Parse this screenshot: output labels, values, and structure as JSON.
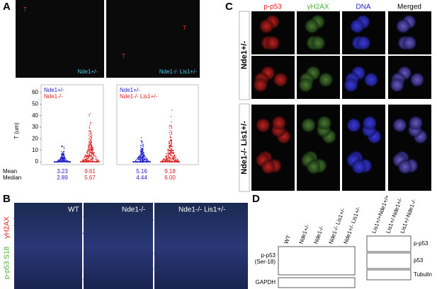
{
  "panel_a": {
    "letter": "A",
    "image_labels": [
      "Nde1+/-",
      "Nde1-/- Lis1+/-"
    ],
    "marker": "T",
    "y_label": "T (um)",
    "yticks": [
      "0",
      "10",
      "20",
      "30",
      "40",
      "50",
      "60"
    ],
    "row_labels": [
      "Mean",
      "Median"
    ],
    "plots": [
      {
        "legend": [
          "Nde1+/-",
          "Nde1-/-"
        ],
        "mean": [
          "3.23",
          "9.61"
        ],
        "median": [
          "2.89",
          "5.67"
        ]
      },
      {
        "legend": [
          "Nde1+/-",
          "Nde1-/- Lis1+/-"
        ],
        "mean": [
          "5.16",
          "9.18"
        ],
        "median": [
          "4.44",
          "6.00"
        ]
      }
    ]
  },
  "panel_b": {
    "letter": "B",
    "image_labels": [
      "WT",
      "Nde1-/-",
      "Nde1-/- Lis1+/-"
    ],
    "stain_labels": [
      "γH2AX",
      "p-p53 S18"
    ]
  },
  "panel_c": {
    "letter": "C",
    "columns": [
      "p-p53",
      "γH2AX",
      "DNA",
      "Merged"
    ],
    "groups": [
      "Nde1+/-",
      "Nde1-/-  Lis1+/-"
    ]
  },
  "panel_d": {
    "letter": "D",
    "left_lanes": [
      "WT",
      "Nde1+/-",
      "Nde1-/-",
      "Nde1-/- Lis1+/-",
      "Nde1+/- Lis1+/-"
    ],
    "left_bands": [
      [
        "p-p53",
        "(Ser-18)"
      ],
      [
        "GAPDH"
      ]
    ],
    "right_lanes": [
      "Lis1+/+Nde1+/+",
      "Lis1+/-Nde1+/-",
      "Lis1+/-Nde1-/-"
    ],
    "right_bands": [
      "p-p53",
      "p53",
      "Tubulin"
    ]
  }
}
